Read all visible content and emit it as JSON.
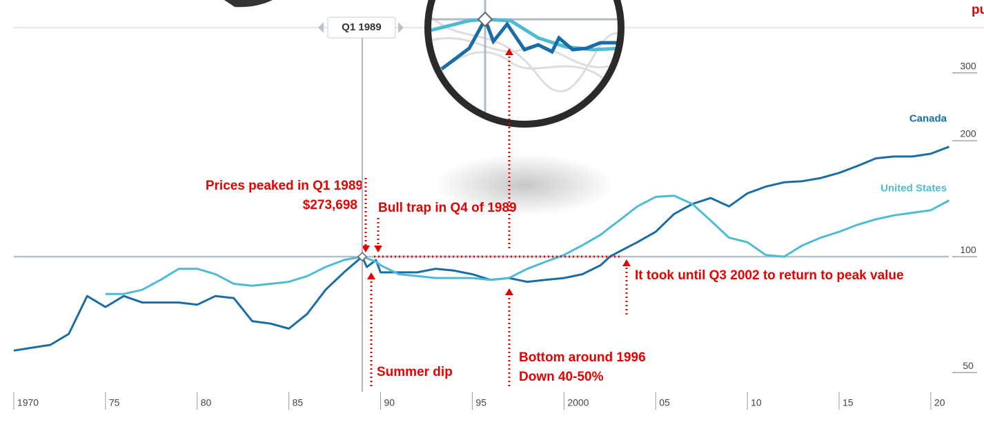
{
  "chart_data": {
    "type": "line",
    "yscale": "log",
    "x": [
      1970,
      1971,
      1972,
      1973,
      1974,
      1975,
      1976,
      1977,
      1978,
      1979,
      1980,
      1981,
      1982,
      1983,
      1984,
      1985,
      1986,
      1987,
      1988,
      1989,
      1989.25,
      1989.75,
      1990,
      1991,
      1992,
      1993,
      1994,
      1995,
      1996,
      1997,
      1998,
      1999,
      2000,
      2001,
      2002,
      2002.5,
      2003,
      2004,
      2005,
      2006,
      2007,
      2008,
      2009,
      2010,
      2011,
      2012,
      2013,
      2014,
      2015,
      2016,
      2017,
      2018,
      2019,
      2020,
      2021
    ],
    "series": [
      {
        "name": "Canada",
        "color": "#1a6ca6",
        "values": [
          57,
          58,
          59,
          63,
          79,
          74,
          79,
          76,
          76,
          76,
          75,
          79,
          78,
          68,
          67,
          65,
          71,
          82,
          91,
          100,
          94,
          98,
          91,
          91,
          91,
          93,
          92,
          90,
          87,
          88,
          86,
          87,
          88,
          90,
          95,
          100,
          103,
          109,
          116,
          129,
          137,
          142,
          135,
          146,
          152,
          156,
          157,
          160,
          165,
          172,
          180,
          182,
          182,
          185,
          193
        ]
      },
      {
        "name": "United States",
        "color": "#4ebbd3",
        "values": [
          null,
          null,
          null,
          null,
          null,
          80,
          80,
          82,
          87,
          93,
          93,
          90,
          85,
          84,
          85,
          86,
          89,
          94,
          98,
          100,
          99,
          97,
          95,
          90,
          89,
          88,
          88,
          88,
          87,
          88,
          93,
          97,
          101,
          107,
          114,
          119,
          124,
          135,
          143,
          144,
          137,
          124,
          112,
          109,
          101,
          100,
          107,
          112,
          116,
          121,
          125,
          128,
          130,
          132,
          140
        ]
      }
    ],
    "xlim": [
      1969.25,
      2022.9
    ],
    "ylim": [
      44.2,
      464
    ],
    "xticks": [
      1970,
      {
        "value": 1975,
        "label": "75"
      },
      {
        "value": 1980,
        "label": "80"
      },
      {
        "value": 1985,
        "label": "85"
      },
      {
        "value": 1990,
        "label": "90"
      },
      {
        "value": 1995,
        "label": "95"
      },
      2000,
      {
        "value": 2005,
        "label": "05"
      },
      {
        "value": 2010,
        "label": "10"
      },
      {
        "value": 2015,
        "label": "15"
      },
      {
        "value": 2020,
        "label": "20"
      }
    ],
    "yticks": [
      50,
      100,
      200,
      300
    ],
    "baseline": 100,
    "cursor": {
      "x": 1989,
      "label": "Q1 1989"
    },
    "annotations": [
      "Prices peaked in Q1 1989",
      "$273,698",
      "Bull trap in Q4 of 1989",
      "Summer dip",
      "Bottom around 1996",
      "Down 40-50%",
      "It took until Q3 2002 to return to peak value",
      "pu"
    ]
  }
}
